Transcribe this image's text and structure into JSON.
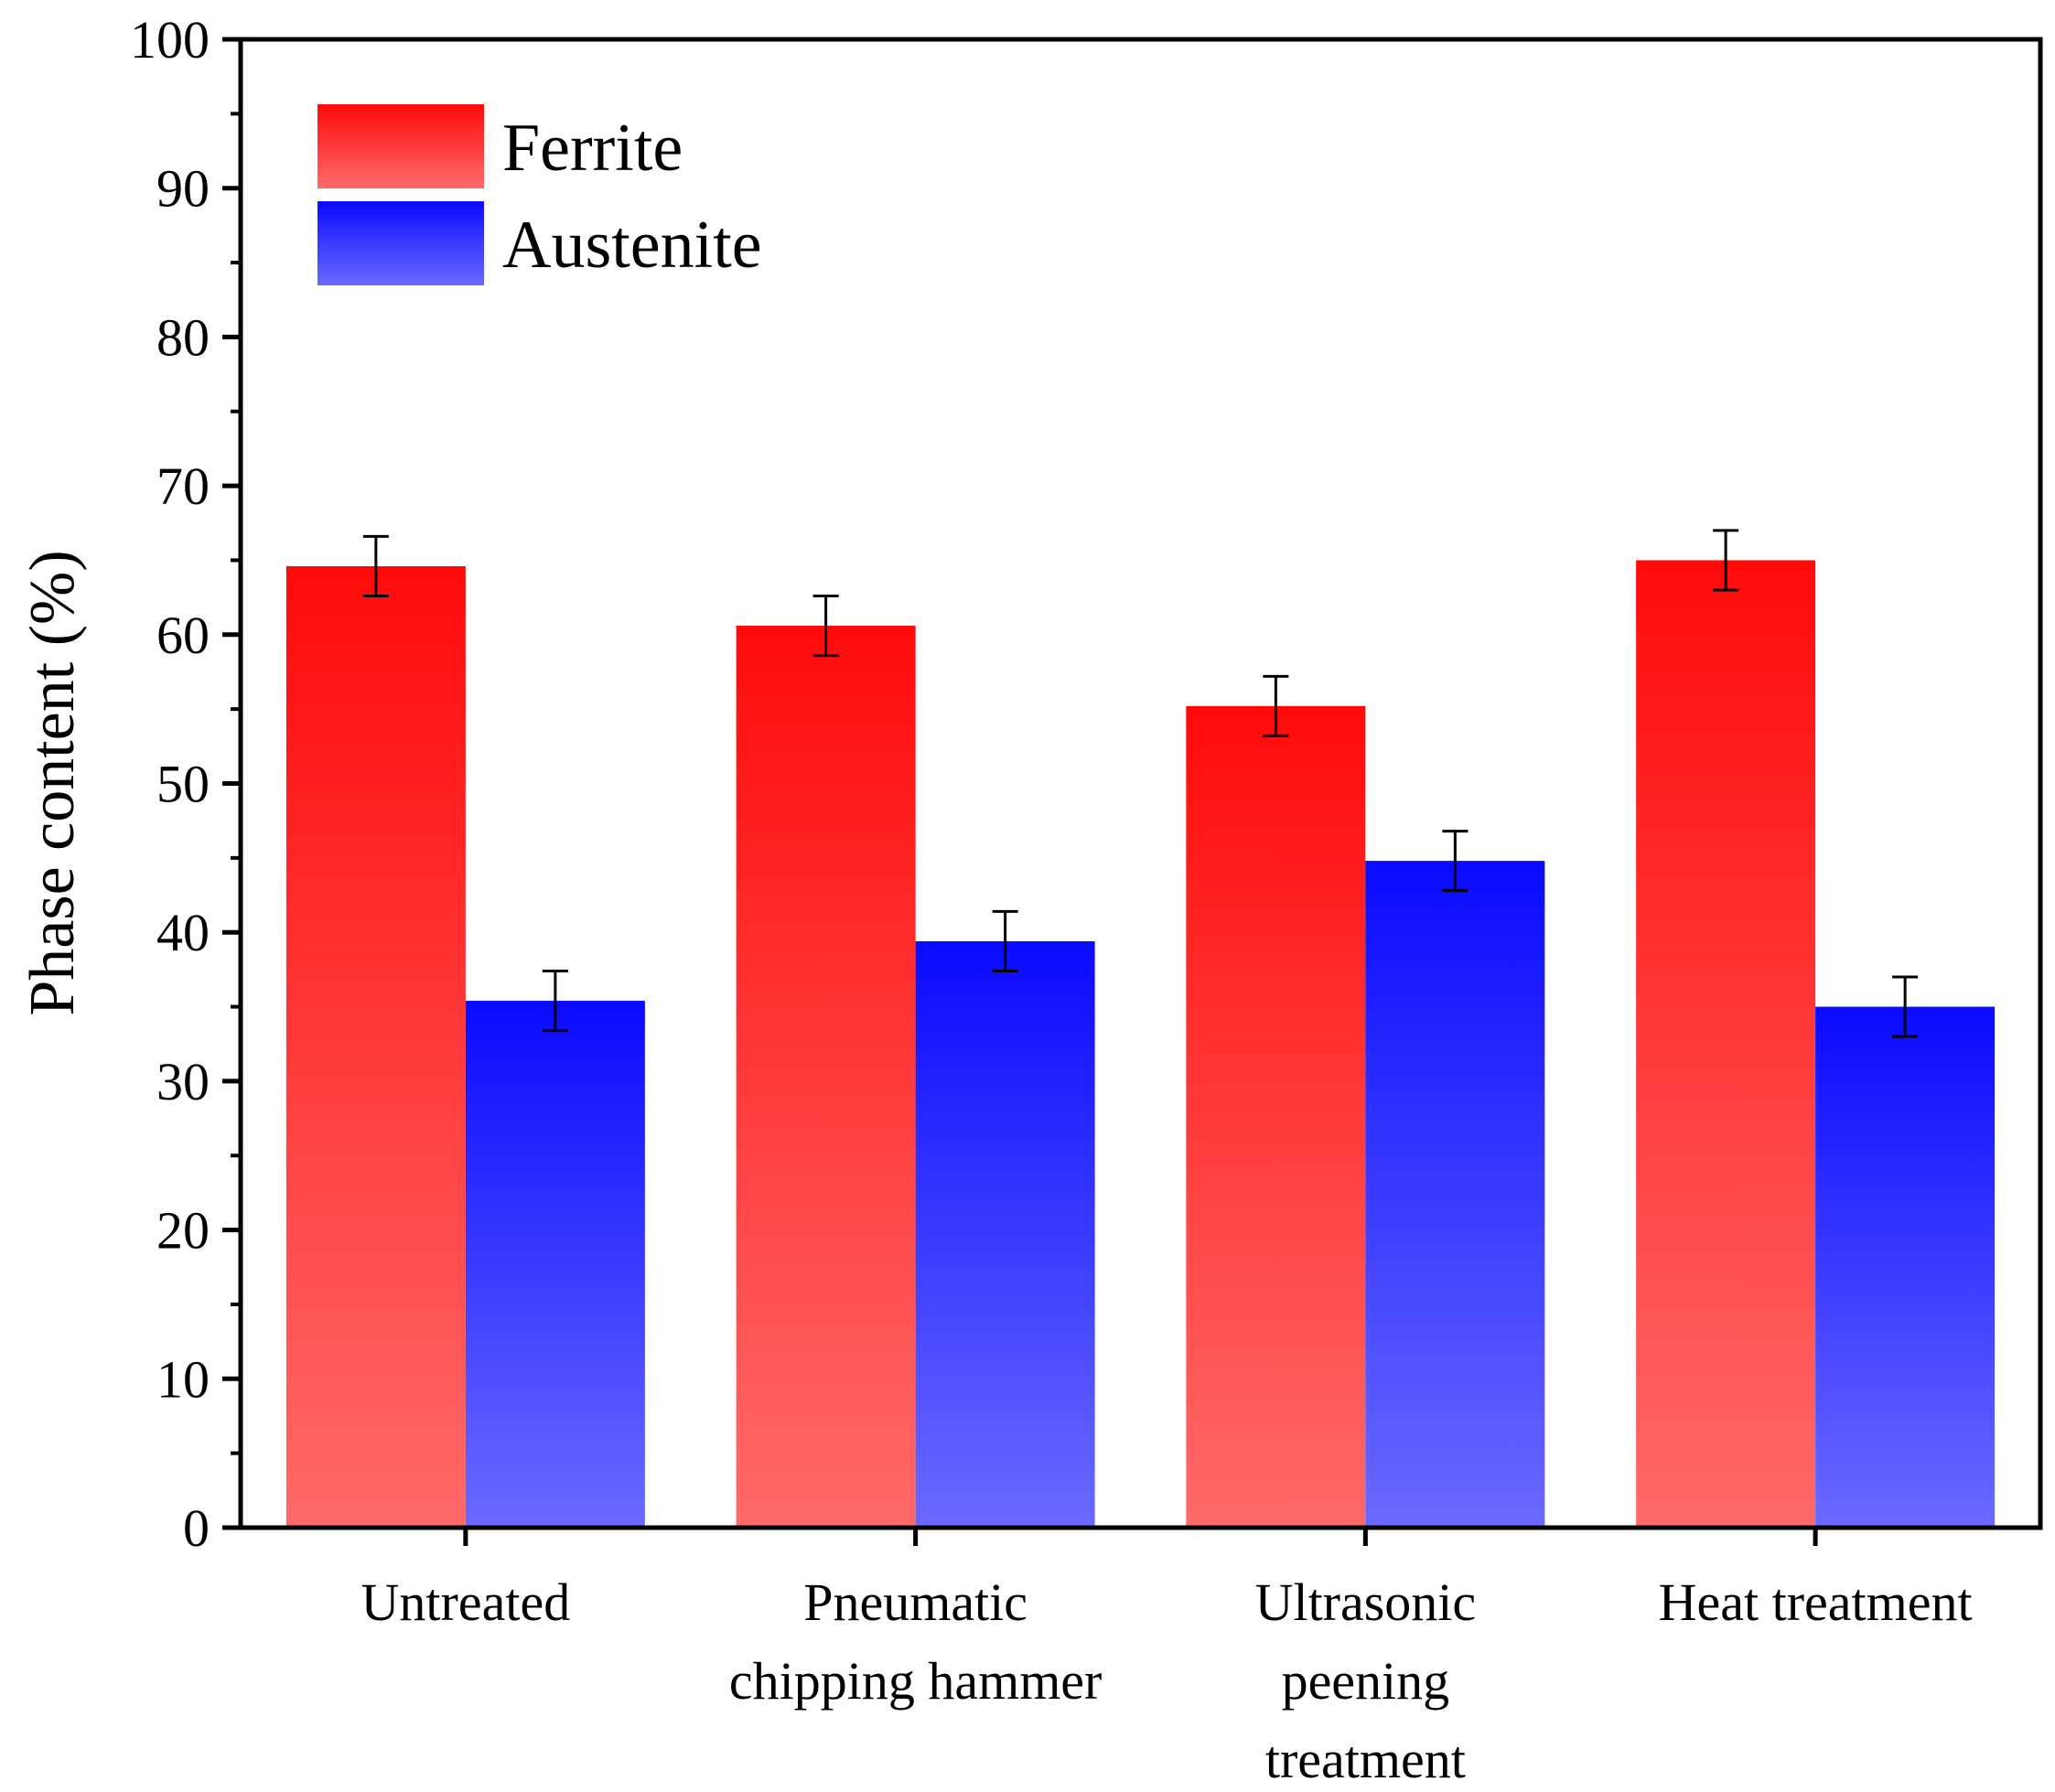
{
  "chart_data": {
    "type": "bar",
    "title": "",
    "xlabel": "",
    "ylabel": "Phase content (%)",
    "ylim": [
      0,
      100
    ],
    "yticks": [
      0,
      10,
      20,
      30,
      40,
      50,
      60,
      70,
      80,
      90,
      100
    ],
    "grid": false,
    "legend_position": "top-left",
    "categories": [
      [
        "Untreated"
      ],
      [
        "Pneumatic",
        "chipping hammer"
      ],
      [
        "Ultrasonic",
        "peening",
        "treatment"
      ],
      [
        "Heat treatment"
      ]
    ],
    "series": [
      {
        "name": "Ferrite",
        "color_top": "#ff0a0a",
        "color_bottom": "#ff6a6a",
        "values": [
          64.6,
          60.6,
          55.2,
          65.0
        ],
        "errors": [
          2.0,
          2.0,
          2.0,
          2.0
        ]
      },
      {
        "name": "Austenite",
        "color_top": "#0a0aff",
        "color_bottom": "#6a6aff",
        "values": [
          35.4,
          39.4,
          44.8,
          35.0
        ],
        "errors": [
          2.0,
          2.0,
          2.0,
          2.0
        ]
      }
    ]
  }
}
